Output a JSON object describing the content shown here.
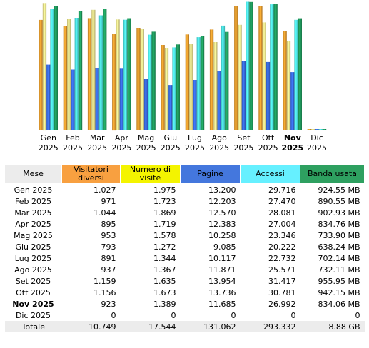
{
  "chart_data": {
    "type": "bar",
    "categories": [
      {
        "month": "Gen",
        "year": "2025"
      },
      {
        "month": "Feb",
        "year": "2025"
      },
      {
        "month": "Mar",
        "year": "2025"
      },
      {
        "month": "Apr",
        "year": "2025"
      },
      {
        "month": "Mag",
        "year": "2025"
      },
      {
        "month": "Giu",
        "year": "2025"
      },
      {
        "month": "Lug",
        "year": "2025"
      },
      {
        "month": "Ago",
        "year": "2025"
      },
      {
        "month": "Set",
        "year": "2025"
      },
      {
        "month": "Ott",
        "year": "2025"
      },
      {
        "month": "Nov",
        "year": "2025"
      },
      {
        "month": "Dic",
        "year": "2025"
      }
    ],
    "current_index": 10,
    "series": [
      {
        "name": "Visitatori diversi",
        "color": "#f0a030",
        "values": [
          1027,
          971,
          1044,
          895,
          953,
          793,
          891,
          937,
          1159,
          1156,
          923,
          0
        ],
        "scale_max": 1200
      },
      {
        "name": "Numero di visite",
        "color": "#f4e890",
        "values": [
          1975,
          1723,
          1869,
          1719,
          1578,
          1272,
          1344,
          1367,
          1635,
          1673,
          1389,
          0
        ],
        "scale_max": 2000
      },
      {
        "name": "Pagine",
        "color": "#3a6ee8",
        "values": [
          13200,
          12203,
          12570,
          12383,
          10258,
          9085,
          10117,
          11871,
          13954,
          13736,
          11685,
          0
        ],
        "scale_max": 26000
      },
      {
        "name": "Accessi",
        "color": "#50e8e8",
        "values": [
          29716,
          27470,
          28081,
          27004,
          23346,
          20222,
          22732,
          25571,
          31417,
          30781,
          26992,
          0
        ],
        "scale_max": 31500
      },
      {
        "name": "Banda usata",
        "color": "#20a060",
        "values": [
          924.55,
          890.55,
          902.93,
          834.76,
          733.9,
          638.24,
          702.14,
          732.11,
          955.95,
          942.15,
          834.06,
          0
        ],
        "scale_max": 960
      }
    ]
  },
  "table": {
    "headers": {
      "mese": "Mese",
      "visitatori": "Visitatori diversi",
      "visite": "Numero di visite",
      "pagine": "Pagine",
      "accessi": "Accessi",
      "banda": "Banda usata"
    },
    "header_colors": {
      "visitatori": "#f8a040",
      "visite": "#f4f400",
      "pagine": "#4477dd",
      "accessi": "#66f0ff",
      "banda": "#2ea060"
    },
    "rows": [
      {
        "mese": "Gen 2025",
        "visitatori": "1.027",
        "visite": "1.975",
        "pagine": "13.200",
        "accessi": "29.716",
        "banda": "924.55 MB"
      },
      {
        "mese": "Feb 2025",
        "visitatori": "971",
        "visite": "1.723",
        "pagine": "12.203",
        "accessi": "27.470",
        "banda": "890.55 MB"
      },
      {
        "mese": "Mar 2025",
        "visitatori": "1.044",
        "visite": "1.869",
        "pagine": "12.570",
        "accessi": "28.081",
        "banda": "902.93 MB"
      },
      {
        "mese": "Apr 2025",
        "visitatori": "895",
        "visite": "1.719",
        "pagine": "12.383",
        "accessi": "27.004",
        "banda": "834.76 MB"
      },
      {
        "mese": "Mag 2025",
        "visitatori": "953",
        "visite": "1.578",
        "pagine": "10.258",
        "accessi": "23.346",
        "banda": "733.90 MB"
      },
      {
        "mese": "Giu 2025",
        "visitatori": "793",
        "visite": "1.272",
        "pagine": "9.085",
        "accessi": "20.222",
        "banda": "638.24 MB"
      },
      {
        "mese": "Lug 2025",
        "visitatori": "891",
        "visite": "1.344",
        "pagine": "10.117",
        "accessi": "22.732",
        "banda": "702.14 MB"
      },
      {
        "mese": "Ago 2025",
        "visitatori": "937",
        "visite": "1.367",
        "pagine": "11.871",
        "accessi": "25.571",
        "banda": "732.11 MB"
      },
      {
        "mese": "Set 2025",
        "visitatori": "1.159",
        "visite": "1.635",
        "pagine": "13.954",
        "accessi": "31.417",
        "banda": "955.95 MB"
      },
      {
        "mese": "Ott 2025",
        "visitatori": "1.156",
        "visite": "1.673",
        "pagine": "13.736",
        "accessi": "30.781",
        "banda": "942.15 MB"
      },
      {
        "mese": "Nov 2025",
        "visitatori": "923",
        "visite": "1.389",
        "pagine": "11.685",
        "accessi": "26.992",
        "banda": "834.06 MB",
        "current": true
      },
      {
        "mese": "Dic 2025",
        "visitatori": "0",
        "visite": "0",
        "pagine": "0",
        "accessi": "0",
        "banda": "0"
      }
    ],
    "total": {
      "mese": "Totale",
      "visitatori": "10.749",
      "visite": "17.544",
      "pagine": "131.062",
      "accessi": "293.332",
      "banda": "8.88 GB"
    }
  }
}
